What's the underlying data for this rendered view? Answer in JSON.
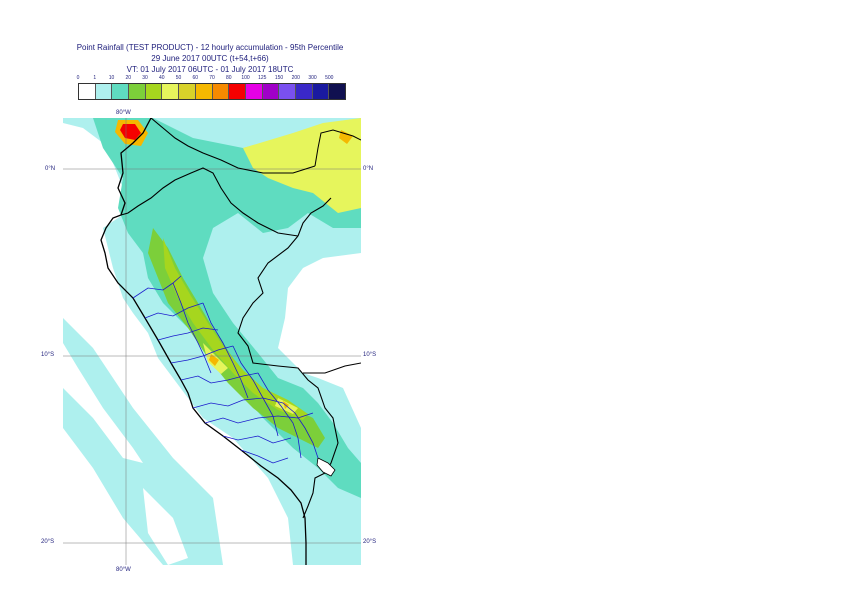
{
  "title": {
    "line1": "Point Rainfall (TEST PRODUCT) - 12 hourly accumulation - 95th Percentile",
    "line2": "29 June 2017 00UTC (t+54,t+66)",
    "line3": "VT: 01 July 2017 06UTC - 01 July 2017 18UTC"
  },
  "legend": {
    "labels": [
      "0",
      "1",
      "10",
      "20",
      "30",
      "40",
      "50",
      "60",
      "70",
      "80",
      "100",
      "125",
      "150",
      "200",
      "300",
      "500"
    ],
    "colors": [
      "#ffffff",
      "#aef0ee",
      "#5fdcc0",
      "#7ccf3a",
      "#a6d61e",
      "#e6f55c",
      "#d8d22a",
      "#f5b800",
      "#f58a00",
      "#f50000",
      "#e600e6",
      "#a000c8",
      "#7a50f0",
      "#3a28c8",
      "#1a1aa0",
      "#101050"
    ]
  },
  "map": {
    "lat_labels": [
      "0°N",
      "10°S",
      "20°S"
    ],
    "lon_label_top": "80°W",
    "lon_label_bottom": "80°W",
    "colors": {
      "ocean_light": "#aef0ee",
      "rain_teal": "#5fdcc0",
      "rain_green": "#7ccf3a",
      "rain_yellowgreen": "#a6d61e",
      "rain_pale_yellow": "#e6f55c",
      "rain_orange": "#f5b800",
      "rain_red": "#f50000",
      "coast": "#000000",
      "admin": "#1a1acc",
      "grid": "#777777"
    }
  }
}
